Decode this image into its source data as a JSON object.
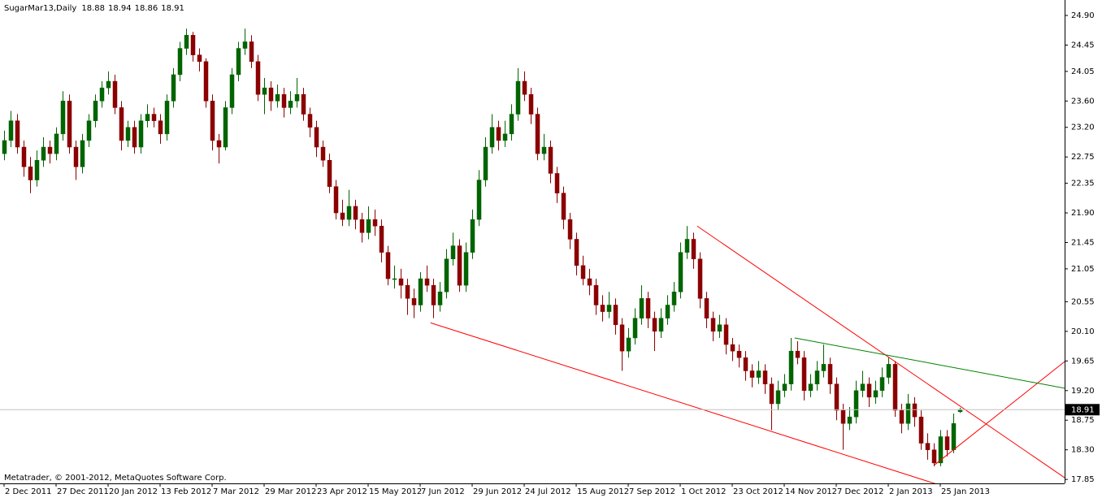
{
  "chart_data": {
    "type": "candlestick",
    "title": "SugarMar13,Daily",
    "watermark": "Metatrader, © 2001-2012, MetaQuotes Software Corp.",
    "up_color": "#006400",
    "down_color": "#8b0000",
    "grid": false,
    "xlim": [
      -0.625,
      163.125
    ],
    "xticks": [
      {
        "value": 0,
        "label": "2 Dec 2011"
      },
      {
        "value": 8,
        "label": "27 Dec 2011"
      },
      {
        "value": 16,
        "label": "20 Jan 2012"
      },
      {
        "value": 24,
        "label": "13 Feb 2012"
      },
      {
        "value": 32,
        "label": "7 Mar 2012"
      },
      {
        "value": 40,
        "label": "29 Mar 2012"
      },
      {
        "value": 48,
        "label": "23 Apr 2012"
      },
      {
        "value": 56,
        "label": "15 May 2012"
      },
      {
        "value": 64,
        "label": "7 Jun 2012"
      },
      {
        "value": 72,
        "label": "29 Jun 2012"
      },
      {
        "value": 80,
        "label": "24 Jul 2012"
      },
      {
        "value": 88,
        "label": "15 Aug 2012"
      },
      {
        "value": 96,
        "label": "7 Sep 2012"
      },
      {
        "value": 104,
        "label": "1 Oct 2012"
      },
      {
        "value": 112,
        "label": "23 Oct 2012"
      },
      {
        "value": 120,
        "label": "14 Nov 2012"
      },
      {
        "value": 128,
        "label": "7 Dec 2012"
      },
      {
        "value": 136,
        "label": "2 Jan 2013"
      },
      {
        "value": 144,
        "label": "25 Jan 2013"
      }
    ],
    "ylim": [
      17.79,
      25.135
    ],
    "yticks": [
      {
        "value": 24.9,
        "label": "24.90"
      },
      24.45,
      24.05,
      {
        "value": 23.6,
        "label": "23.60"
      },
      {
        "value": 23.2,
        "label": "23.20"
      },
      22.75,
      22.35,
      {
        "value": 21.9,
        "label": "21.90"
      },
      21.45,
      21.05,
      20.55,
      {
        "value": 20.1,
        "label": "20.10"
      },
      19.65,
      {
        "value": 19.2,
        "label": "19.20"
      },
      18.75,
      {
        "value": 18.3,
        "label": "18.30"
      },
      17.85
    ],
    "trendlines": [
      {
        "color": "#ff0000",
        "x": [
          65.6,
          145
        ],
        "y": [
          20.23,
          17.73
        ]
      },
      {
        "color": "#ff0000",
        "x": [
          106.6,
          164.4
        ],
        "y": [
          21.7,
          17.79
        ]
      },
      {
        "color": "#ff0000",
        "x": [
          143.1,
          164.4
        ],
        "y": [
          18.07,
          19.74
        ]
      },
      {
        "color": "#008000",
        "x": [
          121.6,
          168.9
        ],
        "y": [
          20.0,
          19.13
        ]
      }
    ],
    "candles": [
      [
        22.8,
        23.15,
        22.7,
        23.0
      ],
      [
        23.0,
        23.45,
        22.9,
        23.3
      ],
      [
        23.3,
        23.4,
        22.8,
        22.9
      ],
      [
        22.9,
        23.0,
        22.45,
        22.6
      ],
      [
        22.6,
        22.75,
        22.2,
        22.4
      ],
      [
        22.4,
        22.85,
        22.3,
        22.7
      ],
      [
        22.7,
        23.05,
        22.6,
        22.9
      ],
      [
        22.9,
        23.0,
        22.65,
        22.8
      ],
      [
        22.8,
        23.2,
        22.7,
        23.1
      ],
      [
        23.1,
        23.75,
        23.0,
        23.6
      ],
      [
        23.6,
        23.7,
        22.8,
        22.9
      ],
      [
        22.9,
        23.0,
        22.4,
        22.6
      ],
      [
        22.6,
        23.1,
        22.5,
        23.0
      ],
      [
        23.0,
        23.4,
        22.9,
        23.3
      ],
      [
        23.3,
        23.7,
        23.2,
        23.6
      ],
      [
        23.6,
        23.9,
        23.5,
        23.8
      ],
      [
        23.8,
        24.05,
        23.7,
        23.9
      ],
      [
        23.9,
        24.0,
        23.4,
        23.5
      ],
      [
        23.5,
        23.6,
        22.85,
        23.0
      ],
      [
        23.0,
        23.3,
        22.9,
        23.2
      ],
      [
        23.2,
        23.3,
        22.8,
        22.9
      ],
      [
        22.9,
        23.4,
        22.8,
        23.3
      ],
      [
        23.3,
        23.55,
        23.2,
        23.4
      ],
      [
        23.4,
        23.5,
        23.2,
        23.3
      ],
      [
        23.3,
        23.4,
        22.95,
        23.1
      ],
      [
        23.1,
        23.7,
        23.0,
        23.6
      ],
      [
        23.6,
        24.1,
        23.5,
        24.0
      ],
      [
        24.0,
        24.5,
        23.9,
        24.4
      ],
      [
        24.4,
        24.7,
        24.3,
        24.6
      ],
      [
        24.6,
        24.65,
        24.2,
        24.3
      ],
      [
        24.3,
        24.4,
        24.05,
        24.2
      ],
      [
        24.2,
        24.25,
        23.5,
        23.6
      ],
      [
        23.6,
        23.7,
        22.85,
        23.0
      ],
      [
        23.0,
        23.1,
        22.65,
        22.9
      ],
      [
        22.9,
        23.6,
        22.85,
        23.5
      ],
      [
        23.5,
        24.1,
        23.4,
        24.0
      ],
      [
        24.0,
        24.5,
        23.9,
        24.4
      ],
      [
        24.4,
        24.7,
        24.3,
        24.5
      ],
      [
        24.5,
        24.6,
        24.1,
        24.2
      ],
      [
        24.2,
        24.3,
        23.6,
        23.7
      ],
      [
        23.7,
        23.95,
        23.4,
        23.8
      ],
      [
        23.8,
        23.9,
        23.45,
        23.6
      ],
      [
        23.6,
        23.85,
        23.5,
        23.7
      ],
      [
        23.7,
        23.8,
        23.35,
        23.5
      ],
      [
        23.5,
        23.75,
        23.4,
        23.6
      ],
      [
        23.6,
        23.95,
        23.5,
        23.7
      ],
      [
        23.7,
        23.8,
        23.3,
        23.4
      ],
      [
        23.4,
        23.5,
        23.05,
        23.2
      ],
      [
        23.2,
        23.3,
        22.75,
        22.9
      ],
      [
        22.9,
        23.0,
        22.6,
        22.7
      ],
      [
        22.7,
        22.8,
        22.2,
        22.3
      ],
      [
        22.3,
        22.4,
        21.8,
        21.9
      ],
      [
        21.9,
        22.1,
        21.7,
        21.8
      ],
      [
        21.8,
        22.25,
        21.7,
        22.0
      ],
      [
        22.0,
        22.1,
        21.65,
        21.8
      ],
      [
        21.8,
        21.9,
        21.45,
        21.6
      ],
      [
        21.6,
        22.0,
        21.5,
        21.8
      ],
      [
        21.8,
        21.95,
        21.55,
        21.7
      ],
      [
        21.7,
        21.8,
        21.15,
        21.3
      ],
      [
        21.3,
        21.4,
        20.8,
        20.9
      ],
      [
        20.9,
        21.1,
        20.75,
        20.9
      ],
      [
        20.9,
        21.05,
        20.6,
        20.8
      ],
      [
        20.8,
        20.9,
        20.35,
        20.6
      ],
      [
        20.6,
        20.75,
        20.3,
        20.5
      ],
      [
        20.5,
        21.0,
        20.4,
        20.9
      ],
      [
        20.9,
        21.1,
        20.7,
        20.8
      ],
      [
        20.8,
        20.9,
        20.3,
        20.5
      ],
      [
        20.5,
        20.85,
        20.4,
        20.7
      ],
      [
        20.7,
        21.35,
        20.6,
        21.2
      ],
      [
        21.2,
        21.6,
        21.1,
        21.4
      ],
      [
        21.4,
        21.5,
        20.7,
        20.8
      ],
      [
        20.8,
        21.45,
        20.7,
        21.3
      ],
      [
        21.3,
        21.95,
        21.2,
        21.8
      ],
      [
        21.8,
        22.55,
        21.7,
        22.4
      ],
      [
        22.4,
        23.05,
        22.3,
        22.9
      ],
      [
        22.9,
        23.4,
        22.8,
        23.2
      ],
      [
        23.2,
        23.3,
        22.85,
        23.0
      ],
      [
        23.0,
        23.3,
        22.9,
        23.1
      ],
      [
        23.1,
        23.55,
        23.0,
        23.4
      ],
      [
        23.4,
        24.1,
        23.3,
        23.9
      ],
      [
        23.9,
        24.05,
        23.6,
        23.7
      ],
      [
        23.7,
        23.8,
        23.25,
        23.4
      ],
      [
        23.4,
        23.5,
        22.7,
        22.8
      ],
      [
        22.8,
        23.1,
        22.7,
        22.9
      ],
      [
        22.9,
        23.0,
        22.35,
        22.5
      ],
      [
        22.5,
        22.6,
        22.05,
        22.2
      ],
      [
        22.2,
        22.3,
        21.65,
        21.8
      ],
      [
        21.8,
        21.9,
        21.35,
        21.5
      ],
      [
        21.5,
        21.6,
        20.95,
        21.1
      ],
      [
        21.1,
        21.25,
        20.8,
        20.9
      ],
      [
        20.9,
        21.05,
        20.65,
        20.8
      ],
      [
        20.8,
        20.9,
        20.35,
        20.5
      ],
      [
        20.5,
        20.65,
        20.25,
        20.4
      ],
      [
        20.4,
        20.7,
        20.3,
        20.5
      ],
      [
        20.5,
        20.6,
        20.05,
        20.2
      ],
      [
        20.2,
        20.3,
        19.5,
        19.8
      ],
      [
        19.8,
        20.15,
        19.7,
        20.0
      ],
      [
        20.0,
        20.45,
        19.9,
        20.3
      ],
      [
        20.3,
        20.8,
        20.2,
        20.6
      ],
      [
        20.6,
        20.7,
        20.15,
        20.3
      ],
      [
        20.3,
        20.4,
        19.8,
        20.1
      ],
      [
        20.1,
        20.45,
        20.0,
        20.3
      ],
      [
        20.3,
        20.65,
        20.2,
        20.5
      ],
      [
        20.5,
        20.85,
        20.4,
        20.7
      ],
      [
        20.7,
        21.45,
        20.6,
        21.3
      ],
      [
        21.3,
        21.7,
        21.2,
        21.5
      ],
      [
        21.5,
        21.6,
        21.05,
        21.2
      ],
      [
        21.2,
        21.3,
        20.45,
        20.6
      ],
      [
        20.6,
        20.7,
        20.15,
        20.3
      ],
      [
        20.3,
        20.4,
        19.95,
        20.1
      ],
      [
        20.1,
        20.35,
        20.0,
        20.2
      ],
      [
        20.2,
        20.3,
        19.75,
        19.9
      ],
      [
        19.9,
        20.0,
        19.65,
        19.8
      ],
      [
        19.8,
        19.9,
        19.55,
        19.7
      ],
      [
        19.7,
        19.8,
        19.35,
        19.5
      ],
      [
        19.5,
        19.6,
        19.25,
        19.4
      ],
      [
        19.4,
        19.65,
        19.3,
        19.5
      ],
      [
        19.5,
        19.6,
        19.15,
        19.3
      ],
      [
        19.3,
        19.4,
        18.6,
        19.0
      ],
      [
        19.0,
        19.35,
        18.9,
        19.2
      ],
      [
        19.2,
        19.45,
        19.1,
        19.3
      ],
      [
        19.3,
        20.0,
        19.2,
        19.8
      ],
      [
        19.8,
        19.95,
        19.6,
        19.7
      ],
      [
        19.7,
        19.8,
        19.05,
        19.2
      ],
      [
        19.2,
        19.45,
        19.1,
        19.3
      ],
      [
        19.3,
        19.65,
        19.2,
        19.5
      ],
      [
        19.5,
        19.9,
        19.4,
        19.6
      ],
      [
        19.6,
        19.7,
        19.15,
        19.3
      ],
      [
        19.3,
        19.4,
        18.75,
        18.9
      ],
      [
        18.9,
        19.0,
        18.3,
        18.7
      ],
      [
        18.7,
        18.95,
        18.6,
        18.8
      ],
      [
        18.8,
        19.35,
        18.7,
        19.2
      ],
      [
        19.2,
        19.5,
        19.1,
        19.3
      ],
      [
        19.3,
        19.4,
        18.95,
        19.1
      ],
      [
        19.1,
        19.35,
        19.0,
        19.2
      ],
      [
        19.2,
        19.55,
        19.1,
        19.4
      ],
      [
        19.4,
        19.7,
        19.3,
        19.6
      ],
      [
        19.6,
        19.65,
        18.8,
        18.9
      ],
      [
        18.9,
        19.0,
        18.55,
        18.7
      ],
      [
        18.7,
        19.15,
        18.6,
        19.0
      ],
      [
        19.0,
        19.1,
        18.65,
        18.8
      ],
      [
        18.8,
        18.9,
        18.3,
        18.4
      ],
      [
        18.4,
        18.55,
        18.15,
        18.3
      ],
      [
        18.3,
        18.4,
        18.05,
        18.1
      ],
      [
        18.1,
        18.6,
        18.05,
        18.5
      ],
      [
        18.5,
        18.6,
        18.2,
        18.3
      ],
      [
        18.3,
        18.85,
        18.25,
        18.7
      ],
      [
        18.88,
        18.94,
        18.86,
        18.91
      ]
    ]
  }
}
